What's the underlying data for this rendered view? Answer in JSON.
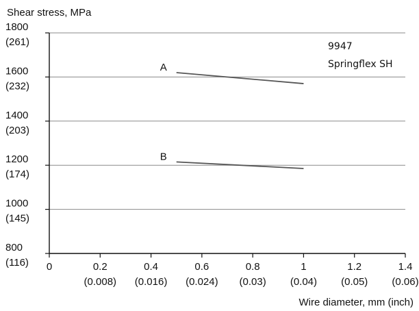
{
  "chart_data": {
    "type": "line",
    "ylabel": "Shear stress, MPa",
    "xlabel": "Wire diameter, mm (inch)",
    "annotation": [
      "9947",
      "Springflex SH"
    ],
    "xlim": [
      0,
      1.4
    ],
    "ylim": [
      800,
      1800
    ],
    "grid": "horizontal",
    "x_ticks": [
      {
        "value": 0,
        "label": "0",
        "sublabel": ""
      },
      {
        "value": 0.2,
        "label": "0.2",
        "sublabel": "(0.008)"
      },
      {
        "value": 0.4,
        "label": "0.4",
        "sublabel": "(0.016)"
      },
      {
        "value": 0.6,
        "label": "0.6",
        "sublabel": "(0.024)"
      },
      {
        "value": 0.8,
        "label": "0.8",
        "sublabel": "(0.03)"
      },
      {
        "value": 1.0,
        "label": "1",
        "sublabel": "(0.04)"
      },
      {
        "value": 1.2,
        "label": "1.2",
        "sublabel": "(0.05)"
      },
      {
        "value": 1.4,
        "label": "1.4",
        "sublabel": "(0.06)"
      }
    ],
    "y_ticks": [
      {
        "value": 800,
        "label": "800",
        "sublabel": "(116)"
      },
      {
        "value": 1000,
        "label": "1000",
        "sublabel": "(145)"
      },
      {
        "value": 1200,
        "label": "1200",
        "sublabel": "(174)"
      },
      {
        "value": 1400,
        "label": "1400",
        "sublabel": "(203)"
      },
      {
        "value": 1600,
        "label": "1600",
        "sublabel": "(232)"
      },
      {
        "value": 1800,
        "label": "1800",
        "sublabel": "(261)"
      }
    ],
    "series": [
      {
        "name": "A",
        "x": [
          0.5,
          1.0
        ],
        "y": [
          1620,
          1570
        ]
      },
      {
        "name": "B",
        "x": [
          0.5,
          1.0
        ],
        "y": [
          1215,
          1185
        ]
      }
    ]
  }
}
